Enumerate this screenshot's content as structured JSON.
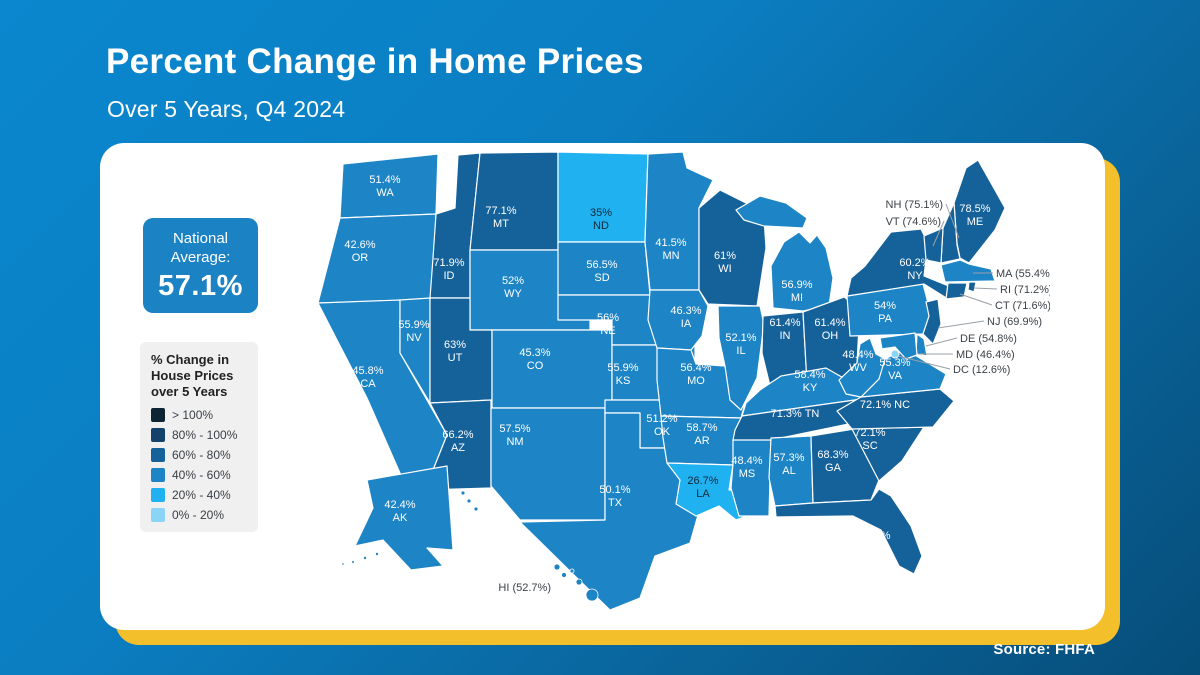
{
  "page": {
    "title": "Percent Change in Home Prices",
    "subtitle": "Over 5 Years, Q4 2024",
    "source": "Source: FHFA"
  },
  "national_average": {
    "label": "National Average:",
    "value": "57.1%"
  },
  "legend": {
    "title": "% Change in House Prices over 5 Years",
    "items": [
      {
        "label": "> 100%",
        "bucket": "gt100"
      },
      {
        "label": "80% - 100%",
        "bucket": "80-100"
      },
      {
        "label": "60% - 80%",
        "bucket": "60-80"
      },
      {
        "label": "40% - 60%",
        "bucket": "40-60"
      },
      {
        "label": "20% - 40%",
        "bucket": "20-40"
      },
      {
        "label": "0% - 20%",
        "bucket": "0-20"
      }
    ]
  },
  "chart_data": {
    "type": "choropleth",
    "title": "Percent Change in Home Prices",
    "subtitle": "Over 5 Years, Q4 2024",
    "metric": "Percent change in house prices over 5 years ending Q4 2024",
    "national_average": 57.1,
    "source": "FHFA",
    "bucket_colors": {
      "gt100": "#0d2433",
      "80-100": "#14426a",
      "60-80": "#15619a",
      "40-60": "#1d84c5",
      "20-40": "#1fb1f0",
      "0-20": "#8ad4f6"
    },
    "states": [
      {
        "code": "WA",
        "label": "51.4%",
        "value": 51.4,
        "bucket": "40-60"
      },
      {
        "code": "OR",
        "label": "42.6%",
        "value": 42.6,
        "bucket": "40-60"
      },
      {
        "code": "CA",
        "label": "45.8%",
        "value": 45.8,
        "bucket": "40-60"
      },
      {
        "code": "NV",
        "label": "55.9%",
        "value": 55.9,
        "bucket": "40-60"
      },
      {
        "code": "ID",
        "label": "71.9%",
        "value": 71.9,
        "bucket": "60-80"
      },
      {
        "code": "MT",
        "label": "77.1%",
        "value": 77.1,
        "bucket": "60-80"
      },
      {
        "code": "WY",
        "label": "52%",
        "value": 52,
        "bucket": "40-60"
      },
      {
        "code": "UT",
        "label": "63%",
        "value": 63,
        "bucket": "60-80"
      },
      {
        "code": "CO",
        "label": "45.3%",
        "value": 45.3,
        "bucket": "40-60"
      },
      {
        "code": "AZ",
        "label": "66.2%",
        "value": 66.2,
        "bucket": "60-80"
      },
      {
        "code": "NM",
        "label": "57.5%",
        "value": 57.5,
        "bucket": "40-60"
      },
      {
        "code": "ND",
        "label": "35%",
        "value": 35,
        "bucket": "20-40"
      },
      {
        "code": "SD",
        "label": "56.5%",
        "value": 56.5,
        "bucket": "40-60"
      },
      {
        "code": "NE",
        "label": "56%",
        "value": 56,
        "bucket": "40-60"
      },
      {
        "code": "KS",
        "label": "55.9%",
        "value": 55.9,
        "bucket": "40-60"
      },
      {
        "code": "OK",
        "label": "51.2%",
        "value": 51.2,
        "bucket": "40-60"
      },
      {
        "code": "TX",
        "label": "50.1%",
        "value": 50.1,
        "bucket": "40-60"
      },
      {
        "code": "MN",
        "label": "41.5%",
        "value": 41.5,
        "bucket": "40-60"
      },
      {
        "code": "IA",
        "label": "46.3%",
        "value": 46.3,
        "bucket": "40-60"
      },
      {
        "code": "MO",
        "label": "56.4%",
        "value": 56.4,
        "bucket": "40-60"
      },
      {
        "code": "AR",
        "label": "58.7%",
        "value": 58.7,
        "bucket": "40-60"
      },
      {
        "code": "LA",
        "label": "26.7%",
        "value": 26.7,
        "bucket": "20-40"
      },
      {
        "code": "WI",
        "label": "61%",
        "value": 61,
        "bucket": "60-80"
      },
      {
        "code": "IL",
        "label": "52.1%",
        "value": 52.1,
        "bucket": "40-60"
      },
      {
        "code": "MS",
        "label": "48.4%",
        "value": 48.4,
        "bucket": "40-60"
      },
      {
        "code": "MI",
        "label": "56.9%",
        "value": 56.9,
        "bucket": "40-60"
      },
      {
        "code": "IN",
        "label": "61.4%",
        "value": 61.4,
        "bucket": "60-80"
      },
      {
        "code": "OH",
        "label": "61.4%",
        "value": 61.4,
        "bucket": "60-80"
      },
      {
        "code": "KY",
        "label": "58.4%",
        "value": 58.4,
        "bucket": "40-60"
      },
      {
        "code": "TN",
        "label": "71.3%",
        "value": 71.3,
        "bucket": "60-80"
      },
      {
        "code": "AL",
        "label": "57.3%",
        "value": 57.3,
        "bucket": "40-60"
      },
      {
        "code": "GA",
        "label": "68.3%",
        "value": 68.3,
        "bucket": "60-80"
      },
      {
        "code": "FL",
        "label": "74.8%",
        "value": 74.8,
        "bucket": "60-80"
      },
      {
        "code": "SC",
        "label": "72.1%",
        "value": 72.1,
        "bucket": "60-80"
      },
      {
        "code": "NC",
        "label": "72.1%",
        "value": 72.1,
        "bucket": "60-80"
      },
      {
        "code": "VA",
        "label": "55.3%",
        "value": 55.3,
        "bucket": "40-60"
      },
      {
        "code": "WV",
        "label": "48.4%",
        "value": 48.4,
        "bucket": "40-60"
      },
      {
        "code": "PA",
        "label": "54%",
        "value": 54,
        "bucket": "40-60"
      },
      {
        "code": "NY",
        "label": "60.2%",
        "value": 60.2,
        "bucket": "60-80"
      },
      {
        "code": "ME",
        "label": "78.5%",
        "value": 78.5,
        "bucket": "60-80"
      },
      {
        "code": "NH",
        "label": "75.1%",
        "value": 75.1,
        "bucket": "60-80"
      },
      {
        "code": "VT",
        "label": "74.6%",
        "value": 74.6,
        "bucket": "60-80"
      },
      {
        "code": "MA",
        "label": "55.4%",
        "value": 55.4,
        "bucket": "40-60"
      },
      {
        "code": "RI",
        "label": "71.2%",
        "value": 71.2,
        "bucket": "60-80"
      },
      {
        "code": "CT",
        "label": "71.6%",
        "value": 71.6,
        "bucket": "60-80"
      },
      {
        "code": "NJ",
        "label": "69.9%",
        "value": 69.9,
        "bucket": "60-80"
      },
      {
        "code": "DE",
        "label": "54.8%",
        "value": 54.8,
        "bucket": "40-60"
      },
      {
        "code": "MD",
        "label": "46.4%",
        "value": 46.4,
        "bucket": "40-60"
      },
      {
        "code": "DC",
        "label": "12.6%",
        "value": 12.6,
        "bucket": "0-20"
      },
      {
        "code": "AK",
        "label": "42.4%",
        "value": 42.4,
        "bucket": "40-60"
      },
      {
        "code": "HI",
        "label": "52.7%",
        "value": 52.7,
        "bucket": "40-60"
      }
    ]
  }
}
